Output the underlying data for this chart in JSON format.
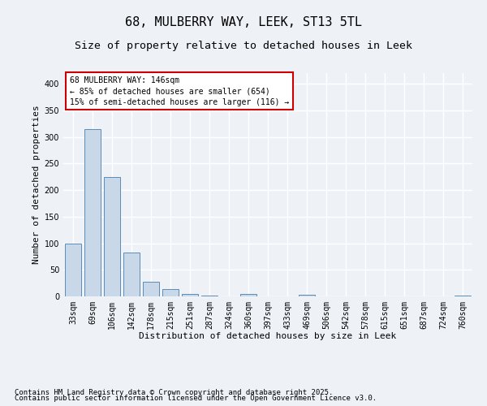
{
  "title_line1": "68, MULBERRY WAY, LEEK, ST13 5TL",
  "title_line2": "Size of property relative to detached houses in Leek",
  "xlabel": "Distribution of detached houses by size in Leek",
  "ylabel": "Number of detached properties",
  "categories": [
    "33sqm",
    "69sqm",
    "106sqm",
    "142sqm",
    "178sqm",
    "215sqm",
    "251sqm",
    "287sqm",
    "324sqm",
    "360sqm",
    "397sqm",
    "433sqm",
    "469sqm",
    "506sqm",
    "542sqm",
    "578sqm",
    "615sqm",
    "651sqm",
    "687sqm",
    "724sqm",
    "760sqm"
  ],
  "values": [
    100,
    315,
    225,
    82,
    28,
    13,
    4,
    2,
    0,
    4,
    0,
    0,
    3,
    0,
    0,
    0,
    0,
    0,
    0,
    0,
    2
  ],
  "bar_color": "#c8d8e8",
  "bar_edge_color": "#5b8db8",
  "annotation_box_text": "68 MULBERRY WAY: 146sqm\n← 85% of detached houses are smaller (654)\n15% of semi-detached houses are larger (116) →",
  "annotation_box_facecolor": "#ffffff",
  "annotation_box_edgecolor": "#cc0000",
  "background_color": "#eef2f7",
  "grid_color": "#ffffff",
  "ylim": [
    0,
    420
  ],
  "yticks": [
    0,
    50,
    100,
    150,
    200,
    250,
    300,
    350,
    400
  ],
  "title_fontsize": 11,
  "subtitle_fontsize": 9.5,
  "axis_label_fontsize": 8,
  "tick_fontsize": 7,
  "annotation_fontsize": 7,
  "footer_fontsize": 6.5,
  "footer_line1": "Contains HM Land Registry data © Crown copyright and database right 2025.",
  "footer_line2": "Contains public sector information licensed under the Open Government Licence v3.0."
}
